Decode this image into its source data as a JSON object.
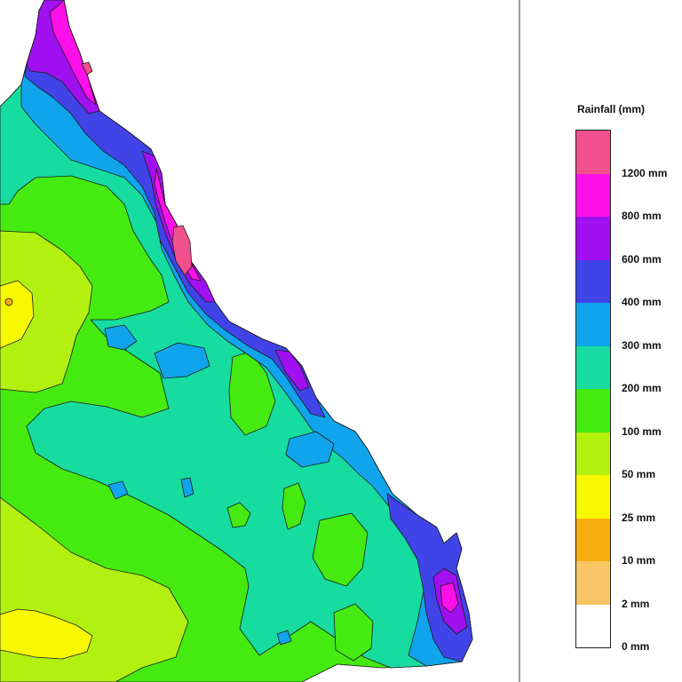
{
  "legend": {
    "title": "Rainfall (mm)",
    "levels": [
      {
        "label": "1200 mm",
        "color": "#f0508c"
      },
      {
        "label": "800 mm",
        "color": "#ff10e8"
      },
      {
        "label": "600 mm",
        "color": "#a010f0"
      },
      {
        "label": "400 mm",
        "color": "#4044e8"
      },
      {
        "label": "300 mm",
        "color": "#10a4ec"
      },
      {
        "label": "200 mm",
        "color": "#16dca0"
      },
      {
        "label": "100 mm",
        "color": "#44ea10"
      },
      {
        "label": "50 mm",
        "color": "#b2f010"
      },
      {
        "label": "25 mm",
        "color": "#f8f800"
      },
      {
        "label": "10 mm",
        "color": "#f8ac10"
      },
      {
        "label": "2 mm",
        "color": "#f8c464"
      },
      {
        "label": "0 mm",
        "color": "#ffffff"
      }
    ]
  }
}
